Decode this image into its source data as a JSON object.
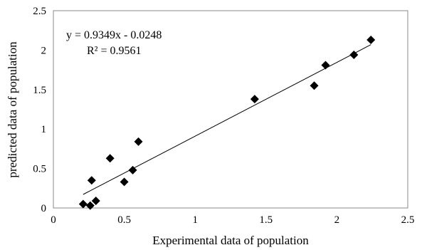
{
  "chart_data": {
    "type": "scatter",
    "title": "",
    "xlabel": "Experimental data of population",
    "ylabel": "predicted data of population",
    "xlim": [
      0,
      2.5
    ],
    "ylim": [
      0,
      2.5
    ],
    "x_ticks": [
      "0",
      "0.5",
      "1",
      "1.5",
      "2",
      "2.5"
    ],
    "y_ticks": [
      "0",
      "0.5",
      "1",
      "1.5",
      "2",
      "2.5"
    ],
    "grid": false,
    "legend": "none",
    "marker": "diamond",
    "marker_color": "#000000",
    "series": [
      {
        "points": [
          {
            "x": 0.21,
            "y": 0.05
          },
          {
            "x": 0.26,
            "y": 0.03
          },
          {
            "x": 0.27,
            "y": 0.35
          },
          {
            "x": 0.3,
            "y": 0.09
          },
          {
            "x": 0.4,
            "y": 0.63
          },
          {
            "x": 0.5,
            "y": 0.33
          },
          {
            "x": 0.56,
            "y": 0.48
          },
          {
            "x": 0.6,
            "y": 0.84
          },
          {
            "x": 1.42,
            "y": 1.38
          },
          {
            "x": 1.84,
            "y": 1.55
          },
          {
            "x": 1.92,
            "y": 1.81
          },
          {
            "x": 2.12,
            "y": 1.94
          },
          {
            "x": 2.24,
            "y": 2.13
          }
        ]
      }
    ],
    "trendline": {
      "slope": 0.9349,
      "intercept": -0.0248,
      "x_range": [
        0.21,
        2.24
      ],
      "equation_text": "y = 0.9349x - 0.0248",
      "r2_text": "R² = 0.9561"
    }
  }
}
